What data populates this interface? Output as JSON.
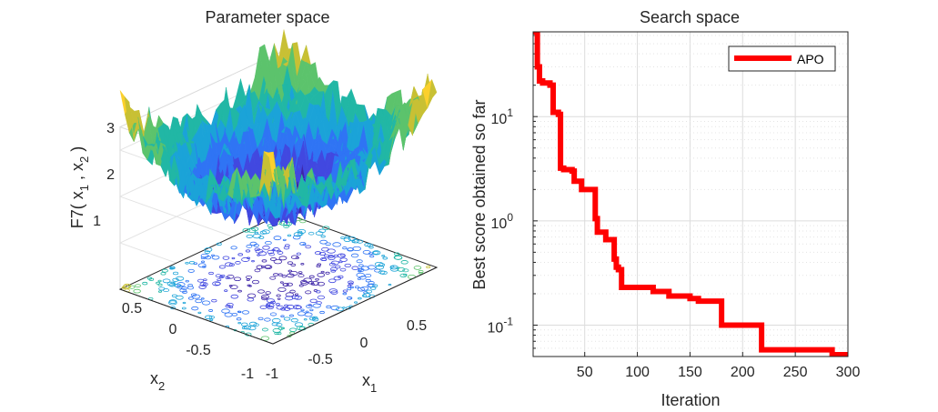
{
  "chart_data": [
    {
      "type": "surface",
      "title": "Parameter space",
      "xlabel": "x",
      "xlabel_sub": "1",
      "ylabel": "x",
      "ylabel_sub": "2",
      "zlabel": {
        "prefix": "F7( x",
        "sub1": "1",
        "mid": " , x",
        "sub2": "2",
        "suffix": " )"
      },
      "xlim": [
        -1,
        1
      ],
      "ylim": [
        -1,
        1
      ],
      "zlim": [
        0,
        3.5
      ],
      "x_ticks": [
        "-1",
        "-0.5",
        "0",
        "0.5"
      ],
      "y_ticks": [
        "-1",
        "-0.5",
        "0",
        "0.5"
      ],
      "z_ticks": [
        "1",
        "2",
        "3"
      ],
      "colormap": [
        "#3e26a8",
        "#4148e0",
        "#2f74f4",
        "#1ba3d8",
        "#21b7a5",
        "#5cc36c",
        "#c8c034",
        "#fbd02c",
        "#f9fb0e"
      ]
    },
    {
      "type": "line",
      "title": "Search space",
      "xlabel": "Iteration",
      "ylabel": "Best score obtained so far",
      "yscale": "log",
      "xlim": [
        1,
        300
      ],
      "ylim": [
        0.05,
        65
      ],
      "x_ticks": [
        "50",
        "100",
        "150",
        "200",
        "250",
        "300"
      ],
      "y_ticks": [
        {
          "base": "10",
          "exp": "1",
          "value": 10
        },
        {
          "base": "10",
          "exp": "0",
          "value": 1
        },
        {
          "base": "10",
          "exp": "-1",
          "value": 0.1
        }
      ],
      "legend_position": "top-right",
      "series": [
        {
          "name": "APO",
          "color": "#ff0000",
          "x": [
            1,
            5,
            7,
            10,
            17,
            20,
            25,
            27,
            30,
            38,
            40,
            44,
            47,
            53,
            58,
            60,
            62,
            66,
            70,
            75,
            78,
            80,
            82,
            85,
            90,
            100,
            108,
            115,
            125,
            130,
            138,
            143,
            150,
            158,
            168,
            178,
            180,
            190,
            200,
            210,
            215,
            218,
            225,
            240,
            255,
            270,
            280,
            285,
            290,
            300
          ],
          "y": [
            65,
            30,
            22,
            21,
            20,
            11,
            10.5,
            3.2,
            3.1,
            3.0,
            2.4,
            2.4,
            2.0,
            2.0,
            2.0,
            1.05,
            0.78,
            0.78,
            0.66,
            0.66,
            0.43,
            0.36,
            0.34,
            0.23,
            0.23,
            0.23,
            0.23,
            0.21,
            0.21,
            0.19,
            0.19,
            0.19,
            0.18,
            0.17,
            0.17,
            0.17,
            0.1,
            0.1,
            0.1,
            0.1,
            0.1,
            0.058,
            0.058,
            0.058,
            0.058,
            0.058,
            0.058,
            0.052,
            0.052,
            0.052
          ]
        }
      ]
    }
  ]
}
